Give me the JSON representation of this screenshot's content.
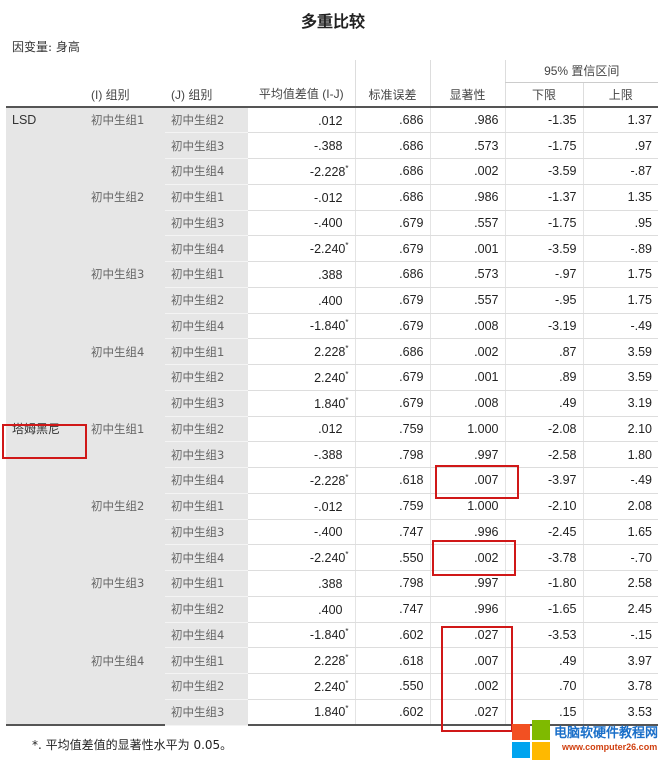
{
  "title": "多重比较",
  "dependent": "因变量:   身高",
  "headers": {
    "i": "(I) 组别",
    "j": "(J) 组别",
    "diff": "平均值差值 (I-J)",
    "se": "标准误差",
    "sig": "显著性",
    "ci": "95% 置信区间",
    "lower": "下限",
    "upper": "上限"
  },
  "rows": [
    [
      "LSD",
      "初中生组1",
      "初中生组2",
      ".012",
      "",
      ".686",
      ".986",
      "-1.35",
      "1.37"
    ],
    [
      "",
      "",
      "初中生组3",
      "-.388",
      "",
      ".686",
      ".573",
      "-1.75",
      ".97"
    ],
    [
      "",
      "",
      "初中生组4",
      "-2.228",
      "*",
      ".686",
      ".002",
      "-3.59",
      "-.87"
    ],
    [
      "",
      "初中生组2",
      "初中生组1",
      "-.012",
      "",
      ".686",
      ".986",
      "-1.37",
      "1.35"
    ],
    [
      "",
      "",
      "初中生组3",
      "-.400",
      "",
      ".679",
      ".557",
      "-1.75",
      ".95"
    ],
    [
      "",
      "",
      "初中生组4",
      "-2.240",
      "*",
      ".679",
      ".001",
      "-3.59",
      "-.89"
    ],
    [
      "",
      "初中生组3",
      "初中生组1",
      ".388",
      "",
      ".686",
      ".573",
      "-.97",
      "1.75"
    ],
    [
      "",
      "",
      "初中生组2",
      ".400",
      "",
      ".679",
      ".557",
      "-.95",
      "1.75"
    ],
    [
      "",
      "",
      "初中生组4",
      "-1.840",
      "*",
      ".679",
      ".008",
      "-3.19",
      "-.49"
    ],
    [
      "",
      "初中生组4",
      "初中生组1",
      "2.228",
      "*",
      ".686",
      ".002",
      ".87",
      "3.59"
    ],
    [
      "",
      "",
      "初中生组2",
      "2.240",
      "*",
      ".679",
      ".001",
      ".89",
      "3.59"
    ],
    [
      "",
      "",
      "初中生组3",
      "1.840",
      "*",
      ".679",
      ".008",
      ".49",
      "3.19"
    ],
    [
      "塔姆黑尼",
      "初中生组1",
      "初中生组2",
      ".012",
      "",
      ".759",
      "1.000",
      "-2.08",
      "2.10"
    ],
    [
      "",
      "",
      "初中生组3",
      "-.388",
      "",
      ".798",
      ".997",
      "-2.58",
      "1.80"
    ],
    [
      "",
      "",
      "初中生组4",
      "-2.228",
      "*",
      ".618",
      ".007",
      "-3.97",
      "-.49"
    ],
    [
      "",
      "初中生组2",
      "初中生组1",
      "-.012",
      "",
      ".759",
      "1.000",
      "-2.10",
      "2.08"
    ],
    [
      "",
      "",
      "初中生组3",
      "-.400",
      "",
      ".747",
      ".996",
      "-2.45",
      "1.65"
    ],
    [
      "",
      "",
      "初中生组4",
      "-2.240",
      "*",
      ".550",
      ".002",
      "-3.78",
      "-.70"
    ],
    [
      "",
      "初中生组3",
      "初中生组1",
      ".388",
      "",
      ".798",
      ".997",
      "-1.80",
      "2.58"
    ],
    [
      "",
      "",
      "初中生组2",
      ".400",
      "",
      ".747",
      ".996",
      "-1.65",
      "2.45"
    ],
    [
      "",
      "",
      "初中生组4",
      "-1.840",
      "*",
      ".602",
      ".027",
      "-3.53",
      "-.15"
    ],
    [
      "",
      "初中生组4",
      "初中生组1",
      "2.228",
      "*",
      ".618",
      ".007",
      ".49",
      "3.97"
    ],
    [
      "",
      "",
      "初中生组2",
      "2.240",
      "*",
      ".550",
      ".002",
      ".70",
      "3.78"
    ],
    [
      "",
      "",
      "初中生组3",
      "1.840",
      "*",
      ".602",
      ".027",
      ".15",
      "3.53"
    ]
  ],
  "footnote": "*. 平均值差值的显著性水平为 0.05。",
  "watermark": {
    "text": "电脑软硬件教程网",
    "url": "www.computer26.com"
  },
  "highlight_color": "#d01818"
}
